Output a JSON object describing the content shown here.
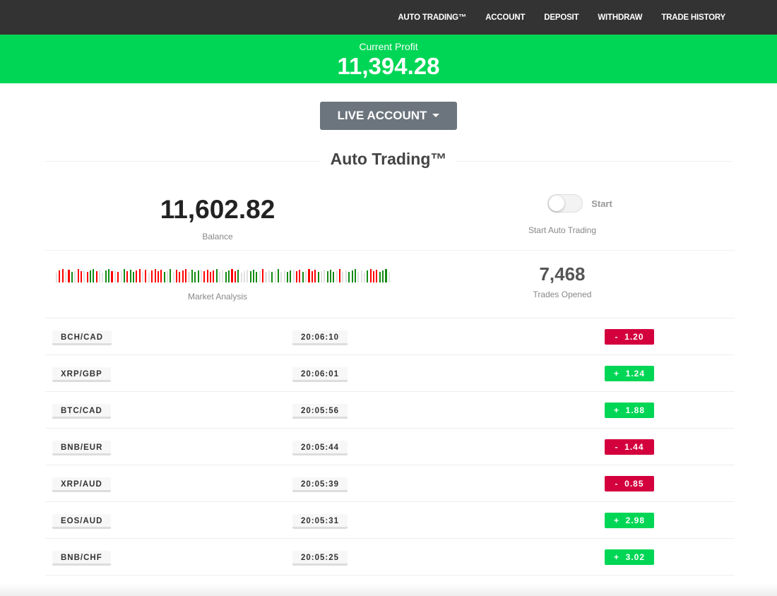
{
  "nav": {
    "items": [
      "AUTO TRADING™",
      "ACCOUNT",
      "DEPOSIT",
      "WITHDRAW",
      "TRADE HISTORY"
    ]
  },
  "profit": {
    "label": "Current Profit",
    "value": "11,394.28"
  },
  "account_button": "LIVE ACCOUNT",
  "section_title": "Auto Trading™",
  "balance": {
    "value": "11,602.82",
    "label": "Balance"
  },
  "auto_trading": {
    "toggle_label": "Start",
    "toggle_on": false,
    "caption": "Start Auto Trading"
  },
  "market_analysis": {
    "label": "Market Analysis",
    "bars": "nrrnrgnrrnrggrnnggrnrngrggrrnrnrrrrgngnrrrrngggnrrrrgnnggrrgnnngggnrnngngnnggnrrgnrrrgnngggnrnngggnnngrrrgggn",
    "colors": {
      "r": "#ff0000",
      "g": "#138a13",
      "n": "#e0e0e0"
    }
  },
  "trades_opened": {
    "value": "7,468",
    "label": "Trades Opened"
  },
  "colors": {
    "profit_bar": "#00d655",
    "loss": "#d3003d",
    "gain": "#00d655",
    "nav": "#333333"
  },
  "trades": [
    {
      "pair": "BCH/CAD",
      "time": "20:06:10",
      "pl": "-  1.20",
      "dir": "neg"
    },
    {
      "pair": "XRP/GBP",
      "time": "20:06:01",
      "pl": "+  1.24",
      "dir": "pos"
    },
    {
      "pair": "BTC/CAD",
      "time": "20:05:56",
      "pl": "+  1.88",
      "dir": "pos"
    },
    {
      "pair": "BNB/EUR",
      "time": "20:05:44",
      "pl": "-  1.44",
      "dir": "neg"
    },
    {
      "pair": "XRP/AUD",
      "time": "20:05:39",
      "pl": "-  0.85",
      "dir": "neg"
    },
    {
      "pair": "EOS/AUD",
      "time": "20:05:31",
      "pl": "+  2.98",
      "dir": "pos"
    },
    {
      "pair": "BNB/CHF",
      "time": "20:05:25",
      "pl": "+  3.02",
      "dir": "pos"
    }
  ]
}
